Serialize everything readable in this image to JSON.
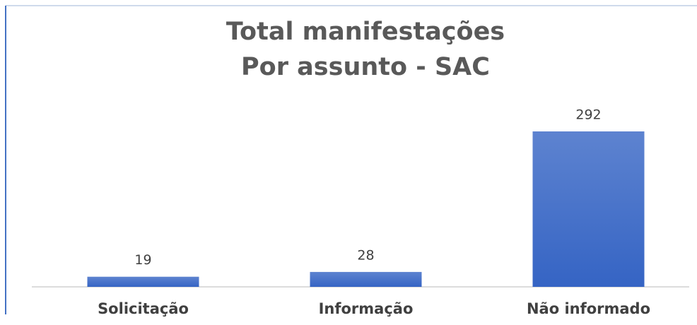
{
  "chart_data": {
    "type": "bar",
    "title": [
      "Total manifestações",
      "Por assunto - SAC"
    ],
    "categories": [
      "Solicitação",
      "Informação",
      "Não informado"
    ],
    "values": [
      19,
      28,
      292
    ],
    "color": "#3564c4"
  }
}
